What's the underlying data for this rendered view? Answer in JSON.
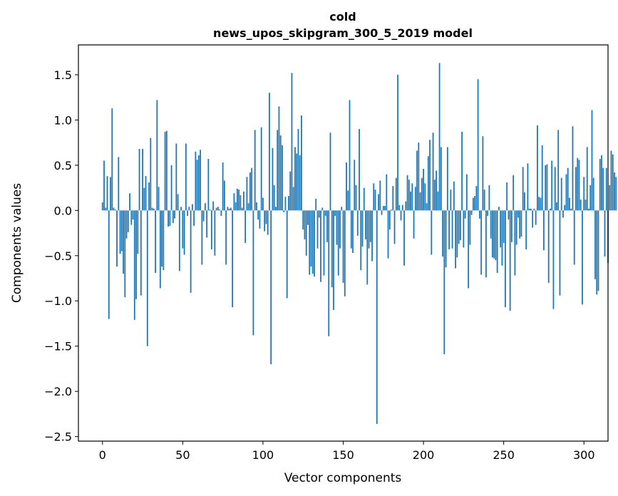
{
  "chart_data": {
    "type": "bar",
    "title": "cold",
    "subtitle": "news_upos_skipgram_300_5_2019 model",
    "xlabel": "Vector components",
    "ylabel": "Components values",
    "xlim": [
      -15,
      315
    ],
    "ylim": [
      -2.55,
      1.83
    ],
    "xticks": [
      0,
      50,
      100,
      150,
      200,
      250,
      300
    ],
    "xtick_labels": [
      "0",
      "50",
      "100",
      "150",
      "200",
      "250",
      "300"
    ],
    "yticks": [
      -2.5,
      -2.0,
      -1.5,
      -1.0,
      -0.5,
      0.0,
      0.5,
      1.0,
      1.5
    ],
    "ytick_labels": [
      "−2.5",
      "−2.0",
      "−1.5",
      "−1.0",
      "−0.5",
      "0.0",
      "0.5",
      "1.0",
      "1.5"
    ],
    "bar_color": "#1f77b4",
    "grid": false,
    "values": [
      0.09,
      0.55,
      0.03,
      0.38,
      -1.2,
      0.37,
      1.13,
      0.03,
      0.01,
      -0.62,
      0.59,
      -0.48,
      -0.45,
      -0.7,
      -0.96,
      -0.31,
      -0.24,
      0.19,
      -0.16,
      -0.1,
      -1.21,
      -0.98,
      -0.48,
      0.68,
      -0.94,
      0.68,
      0.25,
      0.38,
      -1.5,
      0.31,
      0.8,
      0.03,
      0.02,
      -0.69,
      1.22,
      0.26,
      -0.86,
      -0.62,
      -0.66,
      0.87,
      0.88,
      -0.18,
      -0.17,
      0.5,
      -0.14,
      -0.09,
      0.74,
      0.18,
      -0.67,
      0.04,
      -0.42,
      -0.49,
      0.74,
      -0.06,
      0.04,
      -0.91,
      0.07,
      -0.17,
      0.65,
      0.56,
      0.61,
      0.67,
      -0.6,
      -0.12,
      0.08,
      -0.3,
      0.57,
      0.01,
      -0.43,
      0.1,
      -0.5,
      0.03,
      0.04,
      0.01,
      -0.06,
      0.53,
      0.33,
      -0.6,
      0.04,
      0.02,
      0.03,
      -1.07,
      0.19,
      0.09,
      0.24,
      0.23,
      0.17,
      0.03,
      0.21,
      -0.36,
      0.37,
      0.08,
      0.42,
      0.47,
      -1.38,
      0.89,
      0.09,
      -0.1,
      -0.2,
      0.92,
      0.14,
      -0.23,
      -0.15,
      -0.27,
      1.3,
      -1.7,
      0.69,
      0.28,
      0.04,
      0.89,
      1.15,
      0.83,
      0.72,
      -0.02,
      0.15,
      -0.97,
      0.16,
      0.43,
      1.52,
      0.26,
      0.7,
      0.63,
      0.9,
      0.61,
      1.05,
      -0.21,
      -0.32,
      -0.5,
      -0.16,
      -0.71,
      -0.62,
      -0.7,
      -0.73,
      0.13,
      -0.42,
      -0.08,
      -0.79,
      0.03,
      -0.72,
      -0.06,
      -0.35,
      -1.39,
      0.86,
      -0.85,
      -1.1,
      -0.06,
      -0.38,
      -0.72,
      -0.42,
      0.04,
      -0.8,
      -0.95,
      0.53,
      0.22,
      1.22,
      -0.42,
      -0.47,
      0.56,
      0.28,
      -0.28,
      0.9,
      -0.66,
      -0.4,
      0.25,
      -0.32,
      -0.82,
      -0.42,
      -0.35,
      -0.56,
      0.3,
      0.23,
      -2.36,
      0.18,
      0.33,
      -0.05,
      0.05,
      0.05,
      0.4,
      -0.53,
      -0.21,
      0.01,
      0.27,
      -0.37,
      0.36,
      1.5,
      0.06,
      -0.11,
      0.06,
      -0.61,
      0.1,
      0.39,
      0.34,
      0.21,
      0.3,
      -0.31,
      0.26,
      0.66,
      0.75,
      0.2,
      0.36,
      0.46,
      0.3,
      0.08,
      0.6,
      0.78,
      -0.49,
      0.86,
      0.34,
      0.44,
      0.21,
      1.63,
      0.7,
      -0.51,
      -1.59,
      -0.63,
      0.7,
      -0.43,
      0.23,
      -0.42,
      0.32,
      -0.64,
      -0.52,
      -0.37,
      -0.33,
      0.87,
      -0.41,
      -0.09,
      0.4,
      -0.86,
      -0.38,
      -0.05,
      0.14,
      0.16,
      0.27,
      1.45,
      -0.09,
      -0.71,
      0.82,
      0.23,
      -0.74,
      -0.06,
      0.28,
      -0.31,
      -0.52,
      -0.53,
      -0.55,
      -0.69,
      0.04,
      -0.41,
      -0.61,
      -0.36,
      -1.07,
      0.31,
      -0.1,
      -1.11,
      -0.35,
      0.39,
      -0.72,
      -0.38,
      -0.08,
      -0.31,
      -0.29,
      0.48,
      0.2,
      -0.43,
      0.52,
      0.02,
      0.02,
      -0.19,
      0.02,
      -0.16,
      0.94,
      0.15,
      0.14,
      0.72,
      -0.44,
      0.5,
      0.51,
      -0.8,
      0.02,
      0.55,
      -1.09,
      0.48,
      0.09,
      0.89,
      -0.94,
      0.36,
      -0.08,
      0.06,
      0.4,
      0.47,
      0.14,
      0.02,
      0.93,
      -0.6,
      0.48,
      0.58,
      0.56,
      0.12,
      -1.04,
      0.37,
      0.12,
      0.7,
      0.02,
      0.28,
      1.11,
      0.36,
      -0.76,
      -0.93,
      -0.89,
      0.57,
      0.61,
      0.47,
      -0.51,
      0.47,
      -0.58,
      0.28,
      0.66,
      0.62,
      0.42,
      0.37
    ]
  }
}
